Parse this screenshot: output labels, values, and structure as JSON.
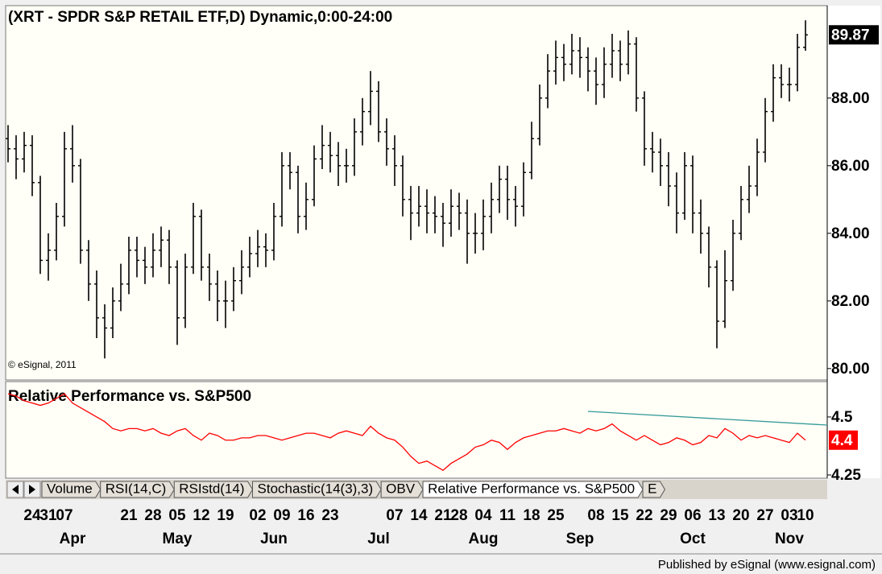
{
  "chart_data": [
    {
      "type": "ohlc",
      "title": "(XRT - SPDR S&P RETAIL ETF,D) Dynamic,0:00-24:00",
      "copyright": "© eSignal, 2011",
      "color": "#000000",
      "ylim": [
        79.71,
        90.71
      ],
      "yticks": [
        {
          "value": 80,
          "label": "80.00"
        },
        {
          "value": 82,
          "label": "82.00"
        },
        {
          "value": 84,
          "label": "84.00"
        },
        {
          "value": 86,
          "label": "86.00"
        },
        {
          "value": 88,
          "label": "88.00"
        }
      ],
      "categories": [
        null,
        null,
        null,
        "24",
        null,
        "31",
        null,
        "07",
        null,
        null,
        null,
        null,
        null,
        null,
        null,
        "21",
        null,
        null,
        "28",
        null,
        null,
        "05",
        null,
        null,
        "12",
        null,
        null,
        "19",
        null,
        null,
        null,
        "02",
        null,
        null,
        "09",
        null,
        null,
        "16",
        null,
        null,
        "23",
        null,
        null,
        null,
        null,
        null,
        null,
        null,
        "07",
        null,
        null,
        "14",
        null,
        null,
        "21",
        null,
        "28",
        null,
        null,
        "04",
        null,
        null,
        "11",
        null,
        null,
        "18",
        null,
        null,
        "25",
        null,
        null,
        null,
        null,
        "08",
        null,
        null,
        "15",
        null,
        null,
        "22",
        null,
        null,
        "29",
        null,
        null,
        "06",
        null,
        null,
        "13",
        null,
        null,
        "20",
        null,
        null,
        "27",
        null,
        null,
        "03",
        null,
        "10"
      ],
      "month_labels": [
        null,
        null,
        null,
        null,
        null,
        null,
        null,
        null,
        "Apr",
        null,
        null,
        null,
        null,
        null,
        null,
        null,
        null,
        null,
        null,
        null,
        null,
        "May",
        null,
        null,
        null,
        null,
        null,
        null,
        null,
        null,
        null,
        null,
        null,
        "Jun",
        null,
        null,
        null,
        null,
        null,
        null,
        null,
        null,
        null,
        null,
        null,
        null,
        "Jul",
        null,
        null,
        null,
        null,
        null,
        null,
        null,
        null,
        null,
        null,
        null,
        null,
        "Aug",
        null,
        null,
        null,
        null,
        null,
        null,
        null,
        null,
        null,
        null,
        null,
        "Sep",
        null,
        null,
        null,
        null,
        null,
        null,
        null,
        null,
        null,
        null,
        null,
        null,
        null,
        "Oct",
        null,
        null,
        null,
        null,
        null,
        null,
        null,
        null,
        null,
        null,
        null,
        "Nov",
        null,
        null
      ],
      "open": [
        86.8,
        86.5,
        86.2,
        86.6,
        85.5,
        83.2,
        83.5,
        84.5,
        86.5,
        86.0,
        83.5,
        82.5,
        81.5,
        81.2,
        82.0,
        82.5,
        83.5,
        83.2,
        83.0,
        83.5,
        83.8,
        83.0,
        81.5,
        83.0,
        84.5,
        83.0,
        82.5,
        82.0,
        82.0,
        82.6,
        83.0,
        83.4,
        83.6,
        83.5,
        84.5,
        86.0,
        85.8,
        84.5,
        85.0,
        86.2,
        86.6,
        86.3,
        86.0,
        86.0,
        87.0,
        87.6,
        88.2,
        87.0,
        86.5,
        86.0,
        85.0,
        84.6,
        84.8,
        84.6,
        84.5,
        84.3,
        84.8,
        84.6,
        84.0,
        84.0,
        84.5,
        85.0,
        85.6,
        85.0,
        84.8,
        85.8,
        86.8,
        88.0,
        88.8,
        89.2,
        89.0,
        89.4,
        89.2,
        88.8,
        88.4,
        89.0,
        89.4,
        89.0,
        89.6,
        88.0,
        86.5,
        86.4,
        86.0,
        85.4,
        84.6,
        86.0,
        84.6,
        84.0,
        83.0,
        81.4,
        82.6,
        84.0,
        85.0,
        85.4,
        86.4,
        87.6,
        88.6,
        88.4,
        88.4,
        89.5
      ],
      "high": [
        87.2,
        86.9,
        87.0,
        86.9,
        85.7,
        84.0,
        84.9,
        87.0,
        87.2,
        86.2,
        83.8,
        82.9,
        81.9,
        82.4,
        83.1,
        83.9,
        83.9,
        83.6,
        84.0,
        84.2,
        84.1,
        83.2,
        83.4,
        84.9,
        84.7,
        83.4,
        82.9,
        82.6,
        83.0,
        83.5,
        83.9,
        84.1,
        84.0,
        84.9,
        86.4,
        86.4,
        86.0,
        85.5,
        86.6,
        87.2,
        87.0,
        86.7,
        86.5,
        87.4,
        88.0,
        88.8,
        88.5,
        87.4,
        86.9,
        86.3,
        85.4,
        85.4,
        85.3,
        85.1,
        84.9,
        85.3,
        85.2,
        85.0,
        84.6,
        85.0,
        85.5,
        86.0,
        86.0,
        85.4,
        86.1,
        87.3,
        88.4,
        89.3,
        89.7,
        89.6,
        89.9,
        89.8,
        89.5,
        89.2,
        89.5,
        89.9,
        89.7,
        90.0,
        89.8,
        88.2,
        87.0,
        86.8,
        86.4,
        85.8,
        86.4,
        86.3,
        85.0,
        84.2,
        83.2,
        83.5,
        84.4,
        85.4,
        86.0,
        86.8,
        88.0,
        89.0,
        89.0,
        88.9,
        89.9,
        90.3
      ],
      "low": [
        86.1,
        85.6,
        85.8,
        85.1,
        82.8,
        82.6,
        83.2,
        84.2,
        85.5,
        83.1,
        82.0,
        80.9,
        80.3,
        80.9,
        81.7,
        82.2,
        82.7,
        82.5,
        82.7,
        83.0,
        82.5,
        80.7,
        81.2,
        82.8,
        82.6,
        82.0,
        81.4,
        81.2,
        81.7,
        82.2,
        82.7,
        83.0,
        83.0,
        83.2,
        84.2,
        85.3,
        84.0,
        84.1,
        84.8,
        85.9,
        85.8,
        85.4,
        85.5,
        85.7,
        86.6,
        87.2,
        86.7,
        86.0,
        85.4,
        84.5,
        83.8,
        84.2,
        84.0,
        84.0,
        83.6,
        83.9,
        84.1,
        83.1,
        83.4,
        83.5,
        84.0,
        84.6,
        84.4,
        84.2,
        84.5,
        85.6,
        86.6,
        87.7,
        88.4,
        88.5,
        88.7,
        88.6,
        88.2,
        87.8,
        88.0,
        88.6,
        88.5,
        88.7,
        87.6,
        86.0,
        85.8,
        85.4,
        84.8,
        84.0,
        84.4,
        84.0,
        83.4,
        82.4,
        80.6,
        81.2,
        82.3,
        83.8,
        84.6,
        85.1,
        86.1,
        87.3,
        88.0,
        87.9,
        88.2,
        89.4
      ],
      "close": [
        86.5,
        86.2,
        86.6,
        85.5,
        83.2,
        83.5,
        84.5,
        86.5,
        86.0,
        83.5,
        82.5,
        81.5,
        81.2,
        82.0,
        82.5,
        83.5,
        83.2,
        83.0,
        83.5,
        83.8,
        83.0,
        81.5,
        83.0,
        84.5,
        83.0,
        82.5,
        82.0,
        82.0,
        82.6,
        83.0,
        83.4,
        83.6,
        83.5,
        84.5,
        86.0,
        85.8,
        84.5,
        85.0,
        86.2,
        86.6,
        86.3,
        86.0,
        86.0,
        87.0,
        87.6,
        88.2,
        87.0,
        86.5,
        86.0,
        85.0,
        84.6,
        84.8,
        84.6,
        84.5,
        84.3,
        84.8,
        84.6,
        84.0,
        84.0,
        84.5,
        85.0,
        85.6,
        85.0,
        84.8,
        85.8,
        86.8,
        88.0,
        88.8,
        89.2,
        89.0,
        89.4,
        89.2,
        88.8,
        88.4,
        89.0,
        89.4,
        89.0,
        89.6,
        88.0,
        86.5,
        86.4,
        86.0,
        85.4,
        84.6,
        86.0,
        84.6,
        84.0,
        83.0,
        81.4,
        82.6,
        84.0,
        85.0,
        85.4,
        86.4,
        87.6,
        88.6,
        88.4,
        88.4,
        89.5,
        89.87
      ]
    },
    {
      "type": "line",
      "title": "Relative Performance vs. S&P500",
      "ylim": [
        4.243,
        4.649
      ],
      "yticks": [
        4.25,
        4.5
      ],
      "series": [
        {
          "name": "Relative Performance vs. S&P500",
          "color": "#ff0000",
          "values": [
            4.6,
            4.59,
            4.57,
            4.56,
            4.55,
            4.56,
            4.58,
            4.6,
            4.56,
            4.54,
            4.52,
            4.5,
            4.48,
            4.45,
            4.44,
            4.45,
            4.45,
            4.44,
            4.45,
            4.43,
            4.42,
            4.44,
            4.45,
            4.42,
            4.4,
            4.43,
            4.42,
            4.4,
            4.4,
            4.41,
            4.41,
            4.42,
            4.42,
            4.41,
            4.4,
            4.41,
            4.42,
            4.43,
            4.43,
            4.42,
            4.41,
            4.43,
            4.44,
            4.43,
            4.42,
            4.46,
            4.43,
            4.41,
            4.4,
            4.37,
            4.33,
            4.3,
            4.31,
            4.29,
            4.27,
            4.3,
            4.32,
            4.34,
            4.37,
            4.38,
            4.4,
            4.39,
            4.36,
            4.39,
            4.41,
            4.42,
            4.43,
            4.44,
            4.44,
            4.45,
            4.44,
            4.43,
            4.45,
            4.44,
            4.45,
            4.47,
            4.44,
            4.42,
            4.4,
            4.42,
            4.4,
            4.38,
            4.39,
            4.41,
            4.4,
            4.38,
            4.39,
            4.42,
            4.41,
            4.45,
            4.43,
            4.4,
            4.42,
            4.41,
            4.42,
            4.41,
            4.4,
            4.39,
            4.43,
            4.4
          ]
        }
      ],
      "trendline": {
        "color": "#339999",
        "x": [
          72,
          101.7
        ],
        "values": [
          4.524,
          4.465
        ]
      }
    }
  ],
  "tabs": [
    "Volume",
    "RSI(14,C)",
    "RSIstd(14)",
    "Stochastic(14(3),3)",
    "OBV",
    "Relative Performance vs. S&P500",
    "E"
  ],
  "footer": "Published by eSignal (www.esignal.com)"
}
